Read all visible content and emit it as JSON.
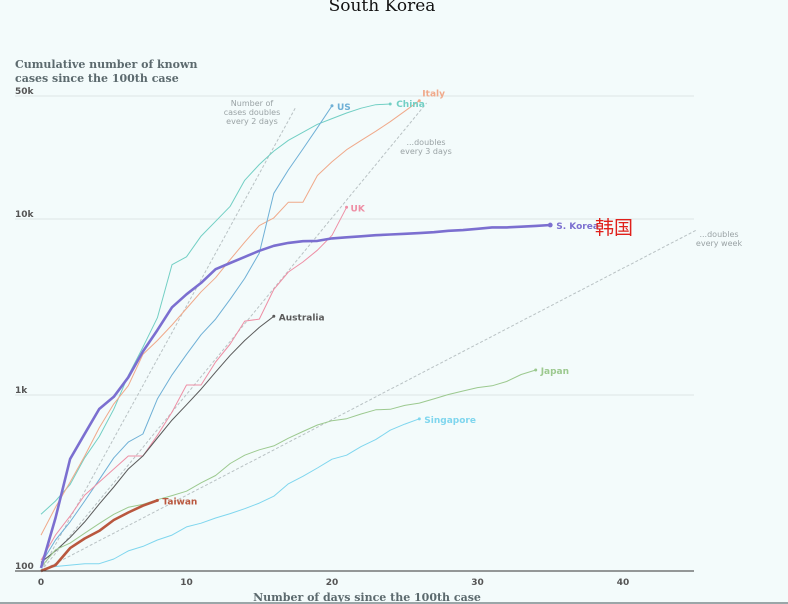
{
  "page_title": "South Korea",
  "annotation_red": "韩国",
  "colors": {
    "background": "#f3fbfb",
    "grid": "#dde6e6",
    "guide": "#b9c2c4",
    "korea": "#7b6fd0",
    "taiwan": "#b9573e",
    "us": "#6fb0d6",
    "china": "#72cfc4",
    "italy": "#f0a98a",
    "uk": "#ee8fa5",
    "australia": "#5a5a5a",
    "japan": "#9cc98f",
    "singapore": "#7fd6ee",
    "red_annotation": "#e0201b"
  },
  "chart_data": {
    "type": "line",
    "title": "South Korea",
    "subtitle": "Cumulative number of known cases since the 100th case",
    "xlabel": "Number of days since the 100th case",
    "ylabel": "",
    "yscale": "log",
    "xlim": [
      0,
      45
    ],
    "ylim": [
      100,
      50000
    ],
    "x_ticks": [
      0,
      10,
      20,
      30,
      40
    ],
    "y_ticks": [
      {
        "value": 100,
        "label": "100"
      },
      {
        "value": 1000,
        "label": "1k"
      },
      {
        "value": 10000,
        "label": "10k"
      },
      {
        "value": 50000,
        "label": "50k"
      }
    ],
    "grid": true,
    "guides": [
      {
        "label": "Number of cases doubles every 2 days",
        "doubling_days": 2
      },
      {
        "label": "...doubles every 3 days",
        "doubling_days": 3
      },
      {
        "label": "...doubles every week",
        "doubling_days": 7
      }
    ],
    "series": [
      {
        "name": "China",
        "key": "china",
        "x": [
          0,
          1,
          2,
          3,
          4,
          5,
          6,
          7,
          8,
          9,
          10,
          11,
          12,
          13,
          14,
          15,
          16,
          17,
          18,
          19,
          20,
          21,
          22,
          23,
          24
        ],
        "y": [
          210,
          250,
          310,
          440,
          580,
          830,
          1290,
          1870,
          2750,
          5500,
          6100,
          8000,
          9700,
          11800,
          16600,
          20400,
          24300,
          28000,
          31100,
          34500,
          37200,
          40000,
          42600,
          44600,
          45000
        ]
      },
      {
        "name": "Italy",
        "key": "italy",
        "x": [
          0,
          1,
          2,
          3,
          4,
          5,
          6,
          7,
          8,
          9,
          10,
          11,
          12,
          13,
          14,
          15,
          16,
          17,
          18,
          19,
          20,
          21,
          22,
          23,
          24,
          25,
          26
        ],
        "y": [
          160,
          230,
          320,
          450,
          650,
          890,
          1130,
          1700,
          2040,
          2500,
          3100,
          3860,
          4640,
          5880,
          7380,
          9170,
          10150,
          12460,
          12460,
          17660,
          21160,
          24750,
          27980,
          31500,
          35700,
          41000,
          47000
        ]
      },
      {
        "name": "US",
        "key": "us",
        "x": [
          0,
          1,
          2,
          3,
          4,
          5,
          6,
          7,
          8,
          9,
          10,
          11,
          12,
          13,
          14,
          15,
          16,
          17,
          18,
          19,
          20
        ],
        "y": [
          110,
          150,
          190,
          250,
          330,
          440,
          540,
          600,
          950,
          1300,
          1700,
          2200,
          2700,
          3500,
          4600,
          6400,
          14000,
          19000,
          25000,
          33000,
          44000
        ]
      },
      {
        "name": "UK",
        "key": "uk",
        "x": [
          0,
          1,
          2,
          3,
          4,
          5,
          6,
          7,
          8,
          9,
          10,
          11,
          12,
          13,
          14,
          15,
          16,
          17,
          18,
          19,
          20,
          21
        ],
        "y": [
          115,
          160,
          205,
          270,
          320,
          380,
          450,
          450,
          590,
          800,
          1140,
          1140,
          1540,
          1950,
          2630,
          2700,
          3980,
          5000,
          5700,
          6650,
          8080,
          11660
        ]
      },
      {
        "name": "Australia",
        "key": "australia",
        "x": [
          0,
          1,
          2,
          3,
          4,
          5,
          6,
          7,
          8,
          9,
          10,
          11,
          12,
          13,
          14,
          15,
          16
        ],
        "y": [
          112,
          130,
          155,
          190,
          240,
          300,
          380,
          450,
          570,
          720,
          880,
          1080,
          1350,
          1680,
          2040,
          2420,
          2800
        ]
      },
      {
        "name": "S. Korea",
        "key": "korea",
        "x": [
          0,
          1,
          2,
          3,
          4,
          5,
          6,
          7,
          8,
          9,
          10,
          11,
          12,
          13,
          14,
          15,
          16,
          17,
          18,
          19,
          20,
          21,
          22,
          23,
          24,
          25,
          26,
          27,
          28,
          29,
          30,
          31,
          32,
          33,
          34,
          35
        ],
        "y": [
          104,
          200,
          433,
          602,
          833,
          977,
          1261,
          1766,
          2337,
          3150,
          3736,
          4335,
          5186,
          5621,
          6088,
          6593,
          7041,
          7313,
          7478,
          7513,
          7755,
          7869,
          7979,
          8086,
          8162,
          8236,
          8320,
          8413,
          8565,
          8652,
          8799,
          8961,
          8961,
          9037,
          9137,
          9241
        ]
      },
      {
        "name": "Taiwan",
        "key": "taiwan",
        "x": [
          0,
          1,
          2,
          3,
          4,
          5,
          6,
          7,
          8
        ],
        "y": [
          100,
          108,
          135,
          153,
          169,
          195,
          215,
          235,
          252
        ]
      },
      {
        "name": "Japan",
        "key": "japan",
        "x": [
          0,
          1,
          2,
          3,
          4,
          5,
          6,
          7,
          8,
          9,
          10,
          11,
          12,
          13,
          14,
          15,
          16,
          17,
          18,
          19,
          20,
          21,
          22,
          23,
          24,
          25,
          26,
          27,
          28,
          29,
          30,
          31,
          32,
          33,
          34
        ],
        "y": [
          105,
          132,
          144,
          164,
          186,
          210,
          230,
          239,
          254,
          268,
          284,
          317,
          349,
          408,
          455,
          488,
          514,
          568,
          620,
          675,
          714,
          733,
          780,
          824,
          829,
          873,
          900,
          950,
          1007,
          1054,
          1101,
          1128,
          1193,
          1307,
          1387
        ]
      },
      {
        "name": "Singapore",
        "key": "singapore",
        "x": [
          0,
          1,
          2,
          3,
          4,
          5,
          6,
          7,
          8,
          9,
          10,
          11,
          12,
          13,
          14,
          15,
          16,
          17,
          18,
          19,
          20,
          21,
          22,
          23,
          24,
          25,
          26
        ],
        "y": [
          102,
          106,
          108,
          110,
          110,
          117,
          130,
          138,
          150,
          160,
          178,
          187,
          200,
          212,
          226,
          243,
          266,
          313,
          345,
          385,
          432,
          455,
          509,
          558,
          631,
          683,
          732
        ]
      }
    ],
    "series_labels": [
      {
        "key": "us",
        "text": "US"
      },
      {
        "key": "china",
        "text": "China"
      },
      {
        "key": "italy",
        "text": "Italy"
      },
      {
        "key": "uk",
        "text": "UK"
      },
      {
        "key": "korea",
        "text": "S. Korea"
      },
      {
        "key": "australia",
        "text": "Australia"
      },
      {
        "key": "japan",
        "text": "Japan"
      },
      {
        "key": "singapore",
        "text": "Singapore"
      },
      {
        "key": "taiwan",
        "text": "Taiwan"
      }
    ]
  }
}
